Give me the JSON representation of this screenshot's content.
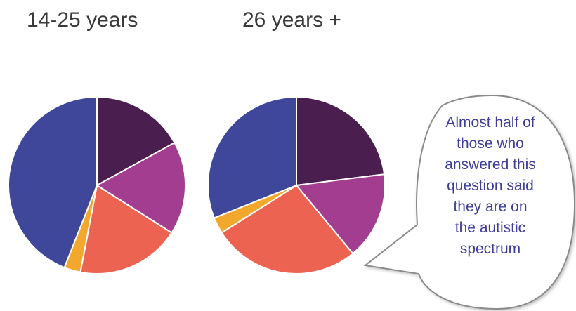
{
  "chart_data": [
    {
      "type": "pie",
      "title": "14-25 years",
      "slices": [
        {
          "value": 17,
          "color": "#4a1f4f"
        },
        {
          "value": 17,
          "color": "#a33d8f"
        },
        {
          "value": 19,
          "color": "#ec6351"
        },
        {
          "value": 3,
          "color": "#f1a82c"
        },
        {
          "value": 44,
          "color": "#3f479a"
        }
      ]
    },
    {
      "type": "pie",
      "title": "26 years +",
      "slices": [
        {
          "value": 23,
          "color": "#4a1f4f"
        },
        {
          "value": 16,
          "color": "#a33d8f"
        },
        {
          "value": 27,
          "color": "#ec6351"
        },
        {
          "value": 3,
          "color": "#f1a82c"
        },
        {
          "value": 31,
          "color": "#3f479a"
        }
      ]
    }
  ],
  "callout": {
    "lines": [
      "Almost half of",
      "those who",
      "answered this",
      "question said",
      "they are on",
      "the autistic",
      "spectrum"
    ],
    "color": "#3e3e9a"
  }
}
